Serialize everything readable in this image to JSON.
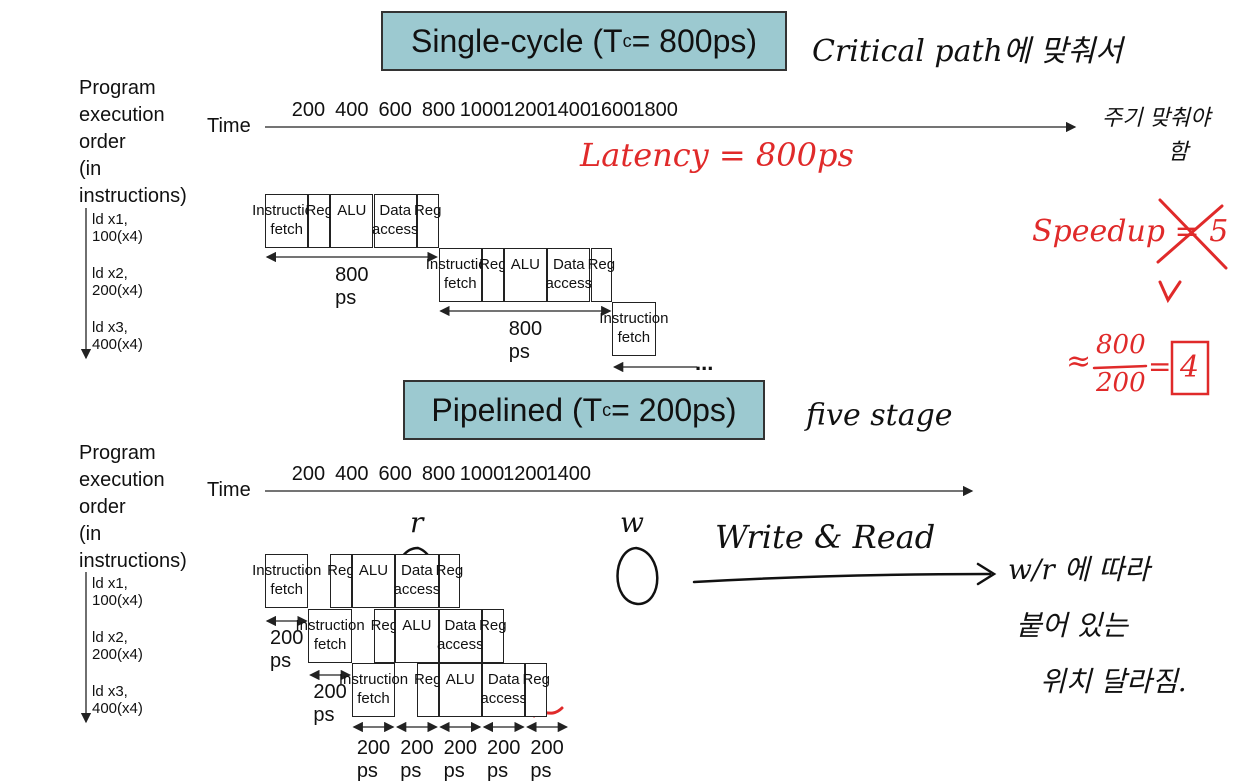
{
  "single_cycle": {
    "title_pre": "Single-cycle (T",
    "title_sub": "c",
    "title_post": "= 800ps)",
    "order_label": [
      "Program",
      "execution",
      "order",
      "(in instructions)"
    ],
    "time_label": "Time",
    "ticks": [
      "200",
      "400",
      "600",
      "800",
      "1000",
      "1200",
      "1400",
      "1600",
      "1800"
    ],
    "instructions": [
      "ld x1, 100(x4)",
      "ld x2, 200(x4)",
      "ld x3, 400(x4)"
    ],
    "stage_labels": [
      "Instruction\nfetch",
      "Reg",
      "ALU",
      "Data\naccess",
      "Reg"
    ],
    "partial_stage": "Instruction\nfetch",
    "duration_label": "800 ps",
    "ellipsis": "..."
  },
  "pipelined": {
    "title_pre": "Pipelined (T",
    "title_sub": "c",
    "title_post": "= 200ps)",
    "order_label": [
      "Program",
      "execution",
      "order",
      "(in instructions)"
    ],
    "time_label": "Time",
    "ticks": [
      "200",
      "400",
      "600",
      "800",
      "1000",
      "1200",
      "1400"
    ],
    "instructions": [
      "ld x1, 100(x4)",
      "ld x2, 200(x4)",
      "ld x3, 400(x4)"
    ],
    "stage_labels": [
      "Instruction\nfetch",
      "Reg",
      "ALU",
      "Data\naccess",
      "Reg"
    ],
    "duration_label": "200 ps"
  },
  "handwriting": {
    "critical_path": "Critical path에 맞춰서",
    "cycle_note_1": "주기 맞춰야",
    "cycle_note_2": "함",
    "latency": "Latency = 800ps",
    "speedup": "Speedup = 5",
    "fraction_num": "800",
    "fraction_den": "200",
    "approx": "≈",
    "equals": "=",
    "result": "4",
    "five_stage": "five stage",
    "write_read": "Write & Read",
    "r_mark": "r",
    "w_mark": "w",
    "wr_note_1": "w/r 에 따라",
    "wr_note_2": "붙어 있는",
    "wr_note_3": "위치 달라짐."
  }
}
